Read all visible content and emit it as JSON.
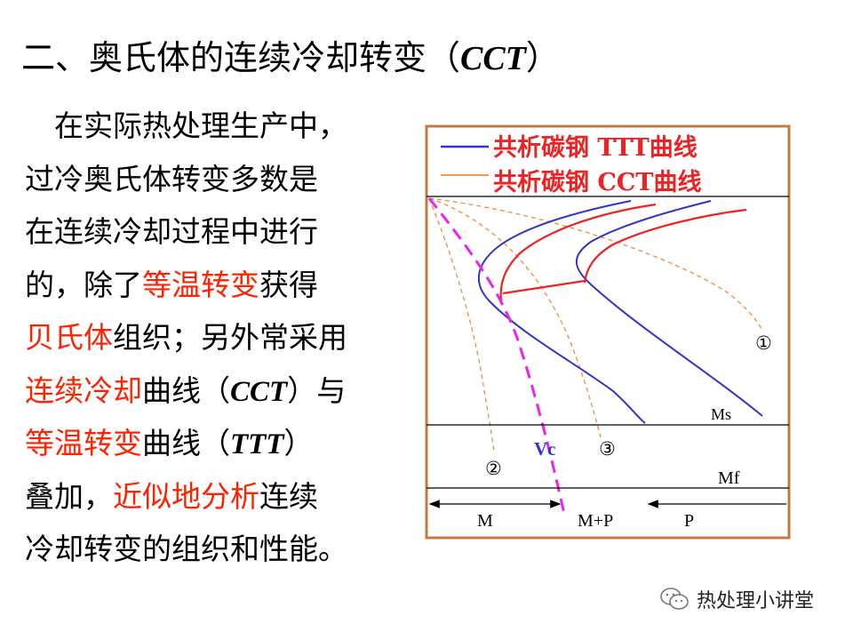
{
  "title": {
    "text": "二、奥氏体的连续冷却转变（",
    "abbr": "CCT",
    "close": "）"
  },
  "body": {
    "l1": "在实际热处理生产中，",
    "l2": "过冷奥氏体转变多数是",
    "l3": "在连续冷却过程中进行",
    "l4a": "的，除了",
    "l4b": "等温转变",
    "l4c": "获得",
    "l5a": "贝氏体",
    "l5b": "组织；另外常采用",
    "l6a": "连续冷却",
    "l6b": "曲线（",
    "l6c": "CCT",
    "l6d": "）与",
    "l7a": "等温转变",
    "l7b": "曲线（",
    "l7c": "TTT",
    "l7d": "）",
    "l8a": "叠加，",
    "l8b": "近似地分析",
    "l8c": "连续",
    "l9": "冷却转变的组织和性能。"
  },
  "diagram": {
    "legend": {
      "ttt": {
        "label": "共析碳钢 TTT曲线",
        "color": "#3333cc"
      },
      "cct": {
        "label": "共析碳钢 CCT曲线",
        "color": "#ee2222"
      }
    },
    "labels": {
      "ms": "Ms",
      "mf": "Mf",
      "vc": "Vc",
      "c1": "①",
      "c2": "②",
      "c3": "③",
      "zone_m": "M",
      "zone_mp": "M+P",
      "zone_p": "P"
    },
    "colors": {
      "frame": "#c8783c",
      "cooling": "#f08a3a",
      "vc": "#ee22ee"
    }
  },
  "watermark": {
    "text": "热处理小讲堂"
  }
}
